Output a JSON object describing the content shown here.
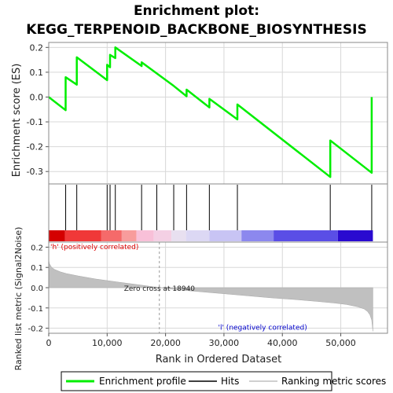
{
  "title_line1": "Enrichment plot:",
  "title_line2": "KEGG_TERPENOID_BACKBONE_BIOSYNTHESIS",
  "colors": {
    "es_line": "#00ee00",
    "hit": "#000000",
    "metric_fill": "#c0c0c0",
    "pos_label": "#dd0000",
    "neg_label": "#0000cc",
    "frame": "#888888"
  },
  "chart_data": [
    {
      "type": "line",
      "panel": "enrichment",
      "ylabel": "Enrichment score (ES)",
      "xlim": [
        0,
        58000
      ],
      "ylim": [
        -0.35,
        0.22
      ],
      "yticks": [
        0.2,
        0.1,
        0.0,
        -0.1,
        -0.2,
        -0.3
      ],
      "ytick_labels": [
        "0.2",
        "0.1",
        "0.0",
        "-0.1",
        "-0.2",
        "-0.3"
      ],
      "grid": true,
      "x": [
        0,
        2900,
        2900,
        4800,
        4800,
        10000,
        10000,
        10500,
        10500,
        11400,
        11400,
        15900,
        15900,
        21400,
        21400,
        23600,
        23600,
        27500,
        27500,
        32300,
        32300,
        48200,
        48200,
        55300,
        55300
      ],
      "y": [
        0.0,
        -0.053,
        0.08,
        0.05,
        0.16,
        0.068,
        0.13,
        0.12,
        0.17,
        0.157,
        0.2,
        0.125,
        0.14,
        0.045,
        0.045,
        0.003,
        0.03,
        -0.042,
        -0.007,
        -0.09,
        -0.03,
        -0.322,
        -0.175,
        -0.305,
        0.0
      ]
    },
    {
      "type": "scatter",
      "panel": "hits",
      "name": "Hits",
      "hit_positions": [
        2900,
        4800,
        10000,
        10500,
        11400,
        15900,
        18500,
        21400,
        23600,
        27500,
        32300,
        48200,
        55300
      ]
    },
    {
      "type": "area",
      "panel": "ranked_metric",
      "ylabel": "Ranked list metric (Signal2Noise)",
      "xlabel": "Rank in Ordered Dataset",
      "xlim": [
        0,
        58000
      ],
      "ylim": [
        -0.225,
        0.225
      ],
      "yticks": [
        0.2,
        0.1,
        0.0,
        -0.1,
        -0.2
      ],
      "ytick_labels": [
        "0.2",
        "0.1",
        "0.0",
        "-0.1",
        "-0.2"
      ],
      "xticks": [
        0,
        10000,
        20000,
        30000,
        40000,
        50000
      ],
      "xtick_labels": [
        "0",
        "10,000",
        "20,000",
        "30,000",
        "40,000",
        "50,000"
      ],
      "grid": true,
      "x": [
        0,
        100,
        500,
        1000,
        2000,
        3000,
        5000,
        8000,
        12000,
        16000,
        18940,
        22000,
        26000,
        30000,
        34000,
        38000,
        42000,
        46000,
        49000,
        51000,
        53000,
        54000,
        54600,
        55000,
        55300,
        55500
      ],
      "y": [
        0.14,
        0.12,
        0.1,
        0.09,
        0.078,
        0.07,
        0.058,
        0.043,
        0.027,
        0.012,
        0.0,
        -0.01,
        -0.02,
        -0.03,
        -0.04,
        -0.05,
        -0.058,
        -0.068,
        -0.076,
        -0.083,
        -0.095,
        -0.105,
        -0.118,
        -0.135,
        -0.16,
        -0.215
      ],
      "zero_cross_label": "Zero cross at 18940",
      "zero_cross_x": 18940,
      "pos_label": "'h' (positively correlated)",
      "neg_label": "'l' (negatively correlated)"
    }
  ],
  "legend": {
    "items": [
      {
        "label": "Enrichment profile",
        "color": "#00ee00"
      },
      {
        "label": "Hits",
        "color": "#000000"
      },
      {
        "label": "Ranking metric scores",
        "color": "#c0c0c0"
      }
    ]
  }
}
